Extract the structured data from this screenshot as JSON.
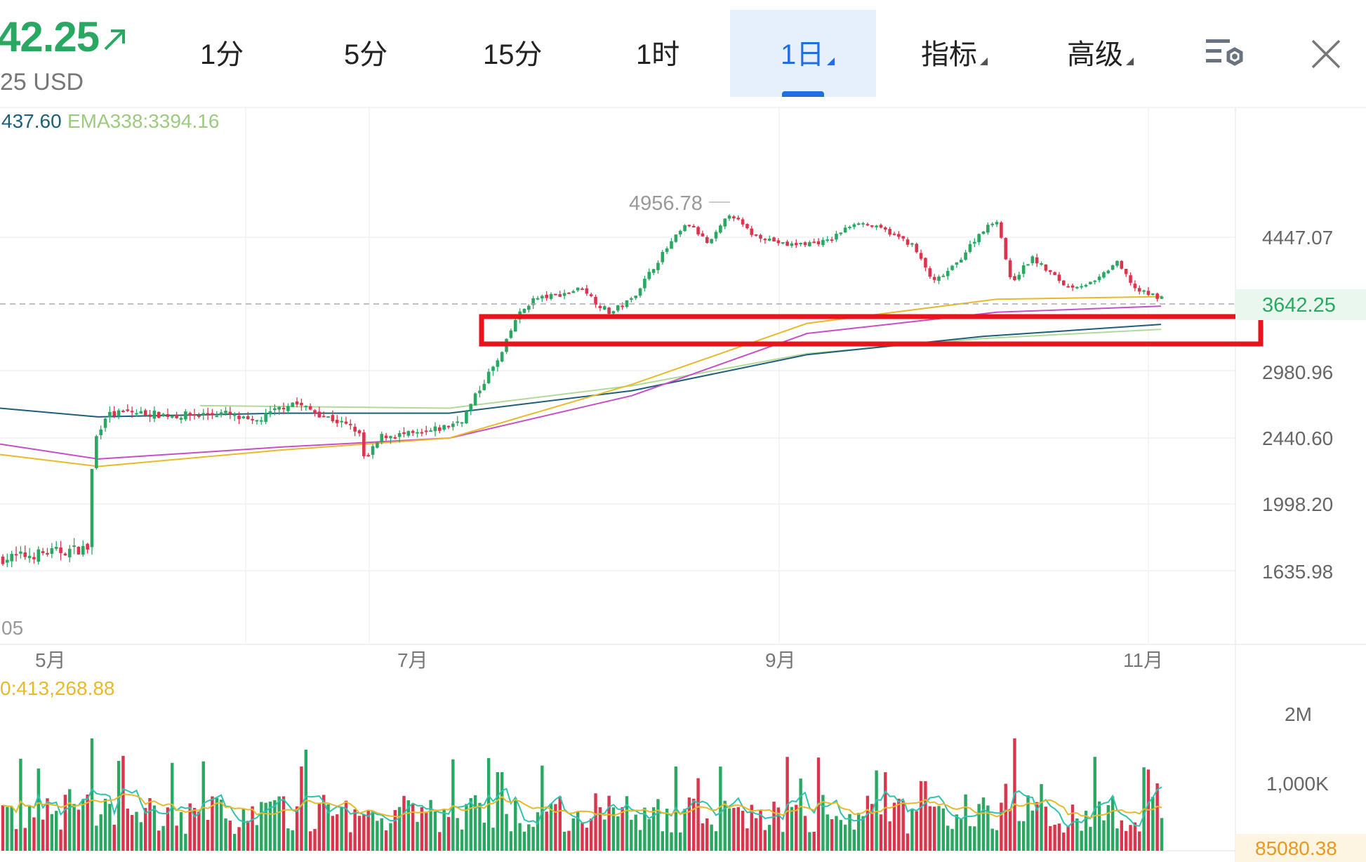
{
  "header": {
    "price": "42.25",
    "price_sub": "25 USD",
    "up_color": "#2aa862",
    "down_color": "#d9364d"
  },
  "tabs": [
    {
      "label": "1分",
      "active": false
    },
    {
      "label": "5分",
      "active": false
    },
    {
      "label": "15分",
      "active": false
    },
    {
      "label": "1时",
      "active": false
    },
    {
      "label": "1日",
      "active": true
    },
    {
      "label": "指标",
      "active": false
    },
    {
      "label": "高级",
      "active": false
    }
  ],
  "icons": {
    "settings": "settings-gear-icon",
    "close": "close-icon",
    "up_arrow": "arrow-up-right-icon"
  },
  "indicators": {
    "ema_left": "437.60",
    "ema_338": "EMA338:3394.16",
    "volume_ma": "0:413,268.88"
  },
  "chart_data": {
    "type": "candlestick",
    "price_axis_labels": [
      "4447.07",
      "2980.96",
      "2440.60",
      "1998.20",
      "1635.98"
    ],
    "current_price": "3642.25",
    "high_marker": "4956.78",
    "partial_low_label": "05",
    "x_labels": [
      "5月",
      "7月",
      "9月",
      "11月"
    ],
    "volume_axis_labels": [
      "2M",
      "1,000K"
    ],
    "current_volume": "85080.38",
    "highlight_zone": {
      "top": 3450,
      "bottom": 3150,
      "color": "#e8131b"
    },
    "ma_colors": {
      "ema_a": "#1d5e7a",
      "ema_b": "#b2d89a",
      "ma_c": "#e8b92a",
      "ma_d": "#c64fc7"
    }
  }
}
